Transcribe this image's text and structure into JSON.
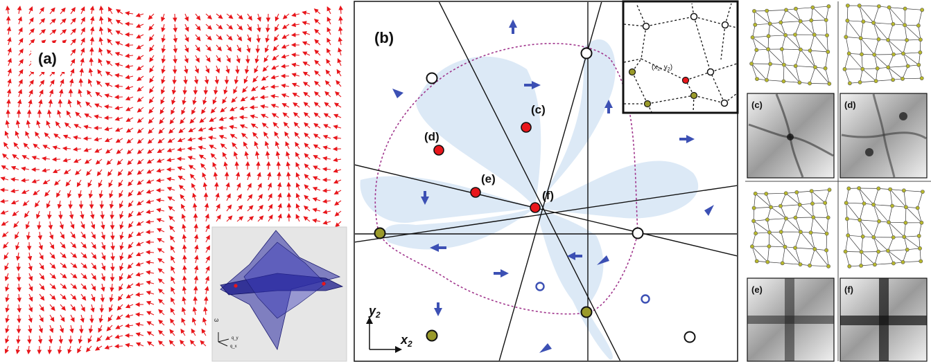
{
  "panel_a": {
    "label": "(a)",
    "arrow_color": "#e8161b",
    "inset": {
      "axis_omega": "ω",
      "axis_qy": "q_y",
      "axis_qx": "q_x",
      "surface_color": "#2a2aa0",
      "background": "#e6e6e6"
    }
  },
  "panel_b": {
    "label": "(b)",
    "axis_y": "y",
    "axis_y_sub": "2",
    "axis_x": "x",
    "axis_x_sub": "2",
    "point_labels": [
      "(c)",
      "(d)",
      "(e)",
      "(f)"
    ],
    "inset_label_x": "(x",
    "inset_sub_x": "2",
    "inset_label_sep": ", y",
    "inset_sub_y": "2",
    "inset_label_end": ")",
    "colors": {
      "red_point": "#e8161b",
      "olive_point": "#9a9a2a",
      "shade": "#dce9f6",
      "dotted_curve": "#a0358c",
      "arrow": "#3c50b4"
    }
  },
  "panel_right": {
    "mini_labels": [
      "(c)",
      "(d)",
      "(e)",
      "(f)"
    ],
    "node_color": "#b8b82c"
  }
}
